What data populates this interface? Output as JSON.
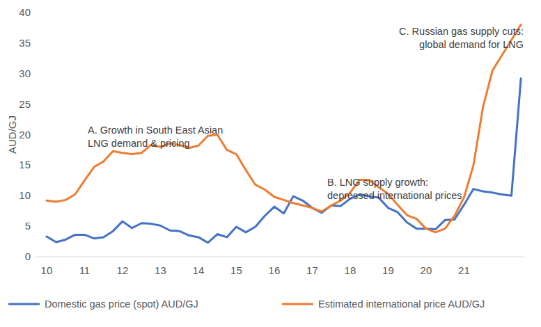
{
  "chart_data": {
    "type": "line",
    "y_label": "AUD/GJ",
    "x": [
      10,
      10.25,
      10.5,
      10.75,
      11,
      11.25,
      11.5,
      11.75,
      12,
      12.25,
      12.5,
      12.75,
      13,
      13.25,
      13.5,
      13.75,
      14,
      14.25,
      14.5,
      14.75,
      15,
      15.25,
      15.5,
      15.75,
      16,
      16.25,
      16.5,
      16.75,
      17,
      17.25,
      17.5,
      17.75,
      18,
      18.25,
      18.5,
      18.75,
      19,
      19.25,
      19.5,
      19.75,
      20,
      20.25,
      20.5,
      20.75,
      21,
      21.25,
      21.5,
      21.75,
      22,
      22.25,
      22.5
    ],
    "series": [
      {
        "name": "Domestic gas price (spot) AUD/GJ",
        "color": "#4472c4",
        "values": [
          3.3,
          2.4,
          2.8,
          3.6,
          3.6,
          3.0,
          3.2,
          4.2,
          5.8,
          4.7,
          5.5,
          5.4,
          5.1,
          4.3,
          4.2,
          3.5,
          3.2,
          2.3,
          3.7,
          3.2,
          4.9,
          4.0,
          4.9,
          6.7,
          8.2,
          7.1,
          9.9,
          9.2,
          8.0,
          7.2,
          8.4,
          8.3,
          9.5,
          10.2,
          9.9,
          9.7,
          8.0,
          7.3,
          5.6,
          4.6,
          4.6,
          4.5,
          6.0,
          6.1,
          8.5,
          11.1,
          10.7,
          10.5,
          10.2,
          10.0,
          29.2
        ]
      },
      {
        "name": "Estimated international price AUD/GJ",
        "color": "#ed7d31",
        "values": [
          9.2,
          9.0,
          9.3,
          10.2,
          12.5,
          14.7,
          15.6,
          17.3,
          17.0,
          16.8,
          17.0,
          18.3,
          18.0,
          18.6,
          18.3,
          17.8,
          18.2,
          19.8,
          20.0,
          17.5,
          16.8,
          14.2,
          11.8,
          11.0,
          9.8,
          9.3,
          8.8,
          8.4,
          8.0,
          7.4,
          8.4,
          9.2,
          10.5,
          12.6,
          12.6,
          11.4,
          10.3,
          8.5,
          6.8,
          6.2,
          4.6,
          4.0,
          4.6,
          6.7,
          9.7,
          15.0,
          24.5,
          30.5,
          33.0,
          35.5,
          38.0
        ]
      }
    ],
    "annotations": [
      {
        "lines": [
          "A. Growth in South East Asian",
          "LNG demand & pricing"
        ]
      },
      {
        "lines": [
          "B. LNG supply growth:",
          "depressed international prices"
        ]
      },
      {
        "lines": [
          "C. Russian gas supply cuts:",
          "global demand for LNG"
        ]
      }
    ],
    "xlim": [
      9.7,
      22.6
    ],
    "xticks": [
      10,
      11,
      12,
      13,
      14,
      15,
      16,
      17,
      18,
      19,
      20,
      21
    ],
    "ylim": [
      0,
      40
    ],
    "yticks": [
      0,
      5,
      10,
      15,
      20,
      25,
      30,
      35,
      40
    ],
    "grid": false,
    "legend": "bottom"
  }
}
